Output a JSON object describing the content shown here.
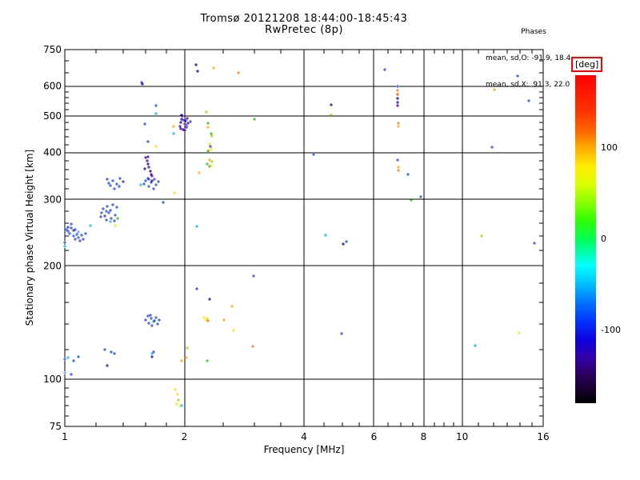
{
  "chart_data": {
    "type": "scatter",
    "title": "Tromsø 20121208 18:44:00-18:45:43",
    "subtitle": "RwPretec (8p)",
    "stats": {
      "header": "Phases",
      "line1": "mean, sd,O: -91.9, 18.4",
      "line2": "mean, sd,X:  91.3, 22.0"
    },
    "xlabel": "Frequency [MHz]",
    "ylabel": "Stationary phase Virtual Height [km]",
    "x_axis": {
      "scale": "log",
      "min": 1,
      "max": 16,
      "major_ticks": [
        1,
        2,
        4,
        6,
        8,
        10,
        16
      ],
      "minor_ticks": [
        1.2,
        1.4,
        1.6,
        1.8,
        2.5,
        3,
        3.5,
        4.5,
        5,
        5.5,
        6.5,
        7,
        7.5,
        8.5,
        9,
        9.5,
        11,
        12,
        13,
        14,
        15
      ],
      "gridlines": [
        2,
        4,
        6,
        8,
        10
      ]
    },
    "y_axis": {
      "scale": "log",
      "min": 75,
      "max": 750,
      "major_ticks": [
        750,
        600,
        500,
        400,
        300,
        200,
        100,
        75
      ],
      "minor_ticks": [
        700,
        650,
        580,
        560,
        540,
        520,
        480,
        460,
        440,
        420,
        380,
        360,
        340,
        320,
        280,
        260,
        240,
        220,
        180,
        160,
        140,
        120,
        95,
        90,
        85,
        80
      ],
      "gridlines": [
        600,
        500,
        400,
        300,
        200,
        100
      ]
    },
    "colorbar": {
      "unit": "[deg]",
      "min": -180,
      "max": 180,
      "ticks": [
        {
          "label": "100",
          "value": 100
        },
        {
          "label": "0",
          "value": 0
        },
        {
          "label": "-100",
          "value": -100
        }
      ],
      "stops": [
        [
          "#ff0000",
          0
        ],
        [
          "#ff3300",
          11
        ],
        [
          "#ff6600",
          17
        ],
        [
          "#ffaa00",
          22
        ],
        [
          "#ffee00",
          28
        ],
        [
          "#ddff00",
          33
        ],
        [
          "#88ff00",
          39
        ],
        [
          "#33ff00",
          44
        ],
        [
          "#00ff55",
          50
        ],
        [
          "#00ffaa",
          54
        ],
        [
          "#00ffff",
          58
        ],
        [
          "#00bbff",
          64
        ],
        [
          "#0077ff",
          69
        ],
        [
          "#0033ff",
          75
        ],
        [
          "#1100dd",
          81
        ],
        [
          "#3300aa",
          86
        ],
        [
          "#2a0055",
          92
        ],
        [
          "#000000",
          100
        ]
      ]
    },
    "palette": {
      "blue": "#2244ee",
      "lblue": "#5599ff",
      "cyan": "#00bbee",
      "dblue": "#2233bb",
      "navy": "#1a0099",
      "purple": "#4400aa",
      "green": "#33bb22",
      "ygreen": "#99dd00",
      "yellow": "#ffdd00",
      "orange": "#ffaa00",
      "dorange": "#ff7711",
      "red": "#ff4400"
    },
    "points_format": [
      "frequency_mhz",
      "virtual_height_km",
      "color"
    ],
    "points": [
      [
        1.0,
        225,
        "cyan"
      ],
      [
        1.0,
        231,
        "blue"
      ],
      [
        1.01,
        250,
        "blue"
      ],
      [
        1.02,
        247,
        "blue"
      ],
      [
        1.02,
        253,
        "dblue"
      ],
      [
        1.03,
        244,
        "blue"
      ],
      [
        1.04,
        252,
        "blue"
      ],
      [
        1.04,
        258,
        "blue"
      ],
      [
        1.05,
        240,
        "blue"
      ],
      [
        1.05,
        248,
        "dblue"
      ],
      [
        1.06,
        236,
        "blue"
      ],
      [
        1.06,
        250,
        "blue"
      ],
      [
        1.07,
        243,
        "blue"
      ],
      [
        1.08,
        238,
        "blue"
      ],
      [
        1.08,
        246,
        "lblue"
      ],
      [
        1.09,
        233,
        "blue"
      ],
      [
        1.1,
        241,
        "blue"
      ],
      [
        1.11,
        236,
        "blue"
      ],
      [
        1.13,
        244,
        "blue"
      ],
      [
        1.16,
        256,
        "cyan"
      ],
      [
        1.23,
        270,
        "blue"
      ],
      [
        1.24,
        277,
        "blue"
      ],
      [
        1.25,
        284,
        "blue"
      ],
      [
        1.26,
        271,
        "dblue"
      ],
      [
        1.27,
        265,
        "blue"
      ],
      [
        1.28,
        288,
        "blue"
      ],
      [
        1.29,
        276,
        "blue"
      ],
      [
        1.3,
        281,
        "blue"
      ],
      [
        1.31,
        268,
        "blue"
      ],
      [
        1.32,
        291,
        "blue"
      ],
      [
        1.33,
        263,
        "blue"
      ],
      [
        1.34,
        273,
        "blue"
      ],
      [
        1.35,
        286,
        "blue"
      ],
      [
        1.36,
        267,
        "green"
      ],
      [
        1.34,
        256,
        "yellow"
      ],
      [
        1.3,
        262,
        "lblue"
      ],
      [
        1.27,
        279,
        "blue"
      ],
      [
        1.28,
        340,
        "blue"
      ],
      [
        1.29,
        332,
        "blue"
      ],
      [
        1.3,
        326,
        "blue"
      ],
      [
        1.32,
        336,
        "blue"
      ],
      [
        1.33,
        321,
        "blue"
      ],
      [
        1.35,
        330,
        "blue"
      ],
      [
        1.37,
        325,
        "blue"
      ],
      [
        1.38,
        341,
        "blue"
      ],
      [
        1.4,
        334,
        "dblue"
      ],
      [
        1.55,
        328,
        "cyan"
      ],
      [
        1.58,
        330,
        "blue"
      ],
      [
        1.6,
        336,
        "blue"
      ],
      [
        1.62,
        342,
        "blue"
      ],
      [
        1.63,
        325,
        "blue"
      ],
      [
        1.65,
        333,
        "blue"
      ],
      [
        1.66,
        336,
        "purple"
      ],
      [
        1.67,
        320,
        "blue"
      ],
      [
        1.68,
        339,
        "blue"
      ],
      [
        1.7,
        328,
        "blue"
      ],
      [
        1.72,
        335,
        "blue"
      ],
      [
        1.77,
        295,
        "blue"
      ],
      [
        1.89,
        313,
        "yellow"
      ],
      [
        1.59,
        362,
        "navy"
      ],
      [
        1.6,
        388,
        "purple"
      ],
      [
        1.61,
        380,
        "purple"
      ],
      [
        1.62,
        372,
        "navy"
      ],
      [
        1.62,
        390,
        "purple"
      ],
      [
        1.63,
        365,
        "purple"
      ],
      [
        1.64,
        357,
        "navy"
      ],
      [
        1.65,
        350,
        "purple"
      ],
      [
        1.66,
        346,
        "purple"
      ],
      [
        1.63,
        340,
        "blue"
      ],
      [
        1.59,
        476,
        "blue"
      ],
      [
        1.7,
        533,
        "blue"
      ],
      [
        1.7,
        508,
        "cyan"
      ],
      [
        1.62,
        428,
        "blue"
      ],
      [
        1.7,
        416,
        "yellow"
      ],
      [
        1.56,
        615,
        "blue"
      ],
      [
        1.57,
        607,
        "navy"
      ],
      [
        1.95,
        470,
        "purple"
      ],
      [
        1.96,
        480,
        "navy"
      ],
      [
        1.96,
        463,
        "purple"
      ],
      [
        1.97,
        490,
        "purple"
      ],
      [
        1.97,
        503,
        "navy"
      ],
      [
        1.98,
        499,
        "purple"
      ],
      [
        1.99,
        460,
        "purple"
      ],
      [
        1.99,
        488,
        "blue"
      ],
      [
        2.0,
        475,
        "purple"
      ],
      [
        2.0,
        457,
        "navy"
      ],
      [
        2.01,
        485,
        "purple"
      ],
      [
        2.02,
        466,
        "purple"
      ],
      [
        2.02,
        472,
        "blue"
      ],
      [
        2.03,
        493,
        "purple"
      ],
      [
        2.04,
        478,
        "purple"
      ],
      [
        2.07,
        483,
        "blue"
      ],
      [
        1.88,
        468,
        "orange"
      ],
      [
        1.88,
        448,
        "cyan"
      ],
      [
        2.27,
        512,
        "ygreen"
      ],
      [
        2.29,
        479,
        "green"
      ],
      [
        2.29,
        466,
        "orange"
      ],
      [
        2.34,
        449,
        "green"
      ],
      [
        2.35,
        443,
        "ygreen"
      ],
      [
        2.31,
        421,
        "yellow"
      ],
      [
        2.33,
        415,
        "blue"
      ],
      [
        2.34,
        410,
        "yellow"
      ],
      [
        2.3,
        406,
        "yellow"
      ],
      [
        2.29,
        404,
        "green"
      ],
      [
        2.31,
        382,
        "orange"
      ],
      [
        2.35,
        379,
        "ygreen"
      ],
      [
        2.28,
        372,
        "green"
      ],
      [
        2.31,
        368,
        "green"
      ],
      [
        2.34,
        369,
        "yellow"
      ],
      [
        2.18,
        353,
        "orange"
      ],
      [
        2.14,
        685,
        "navy"
      ],
      [
        2.16,
        658,
        "navy"
      ],
      [
        2.37,
        671,
        "orange"
      ],
      [
        2.74,
        652,
        "dorange"
      ],
      [
        3.0,
        490,
        "green"
      ],
      [
        4.69,
        534,
        "navy"
      ],
      [
        4.69,
        503,
        "ygreen"
      ],
      [
        4.23,
        395,
        "blue"
      ],
      [
        6.4,
        665,
        "blue"
      ],
      [
        6.87,
        600,
        "blue"
      ],
      [
        6.88,
        585,
        "dorange"
      ],
      [
        6.89,
        570,
        "red"
      ],
      [
        6.88,
        556,
        "navy"
      ],
      [
        6.89,
        542,
        "purple"
      ],
      [
        6.88,
        533,
        "purple"
      ],
      [
        6.9,
        478,
        "dorange"
      ],
      [
        6.9,
        470,
        "orange"
      ],
      [
        6.88,
        382,
        "blue"
      ],
      [
        6.9,
        366,
        "orange"
      ],
      [
        6.9,
        359,
        "dorange"
      ],
      [
        7.3,
        350,
        "blue"
      ],
      [
        7.46,
        299,
        "green"
      ],
      [
        7.86,
        305,
        "blue"
      ],
      [
        13.8,
        637,
        "blue"
      ],
      [
        12.05,
        588,
        "orange"
      ],
      [
        14.7,
        549,
        "blue"
      ],
      [
        11.9,
        413,
        "blue"
      ],
      [
        11.2,
        240,
        "ygreen"
      ],
      [
        15.2,
        230,
        "blue"
      ],
      [
        4.53,
        241,
        "cyan"
      ],
      [
        5.12,
        232,
        "blue"
      ],
      [
        5.02,
        229,
        "navy"
      ],
      [
        2.15,
        255,
        "cyan"
      ],
      [
        2.15,
        174,
        "dblue"
      ],
      [
        2.31,
        163,
        "navy"
      ],
      [
        2.63,
        156,
        "orange"
      ],
      [
        2.98,
        188,
        "blue"
      ],
      [
        2.97,
        122,
        "dorange"
      ],
      [
        4.98,
        132,
        "blue"
      ],
      [
        10.8,
        123,
        "cyan"
      ],
      [
        13.9,
        133,
        "yellow"
      ],
      [
        2.52,
        144,
        "orange"
      ],
      [
        2.24,
        146,
        "yellow"
      ],
      [
        2.27,
        144,
        "yellow"
      ],
      [
        2.28,
        145,
        "yellow"
      ],
      [
        2.29,
        143,
        "dorange"
      ],
      [
        2.66,
        135,
        "yellow"
      ],
      [
        2.03,
        121,
        "ygreen"
      ],
      [
        1.97,
        112,
        "orange"
      ],
      [
        2.02,
        114,
        "orange"
      ],
      [
        2.28,
        112,
        "green"
      ],
      [
        1.6,
        144,
        "blue"
      ],
      [
        1.62,
        147,
        "blue"
      ],
      [
        1.63,
        141,
        "blue"
      ],
      [
        1.65,
        145,
        "blue"
      ],
      [
        1.66,
        139,
        "blue"
      ],
      [
        1.67,
        142,
        "cyan"
      ],
      [
        1.68,
        143,
        "blue"
      ],
      [
        1.7,
        146,
        "blue"
      ],
      [
        1.71,
        140,
        "blue"
      ],
      [
        1.73,
        144,
        "blue"
      ],
      [
        1.64,
        148,
        "blue"
      ],
      [
        1.66,
        117,
        "cyan"
      ],
      [
        1.67,
        118,
        "blue"
      ],
      [
        1.66,
        115,
        "purple"
      ],
      [
        1.0,
        113,
        "blue"
      ],
      [
        1.02,
        114,
        "cyan"
      ],
      [
        1.05,
        112,
        "blue"
      ],
      [
        1.08,
        115,
        "blue"
      ],
      [
        1.04,
        103,
        "blue"
      ],
      [
        1.0,
        104,
        "lblue"
      ],
      [
        1.26,
        120,
        "blue"
      ],
      [
        1.31,
        118,
        "blue"
      ],
      [
        1.33,
        117,
        "blue"
      ],
      [
        1.28,
        109,
        "purple"
      ],
      [
        1.9,
        94,
        "yellow"
      ],
      [
        1.92,
        91,
        "yellow"
      ],
      [
        1.93,
        88,
        "ygreen"
      ],
      [
        1.95,
        85,
        "yellow"
      ],
      [
        1.91,
        86,
        "yellow"
      ],
      [
        1.97,
        85,
        "cyan"
      ]
    ]
  }
}
